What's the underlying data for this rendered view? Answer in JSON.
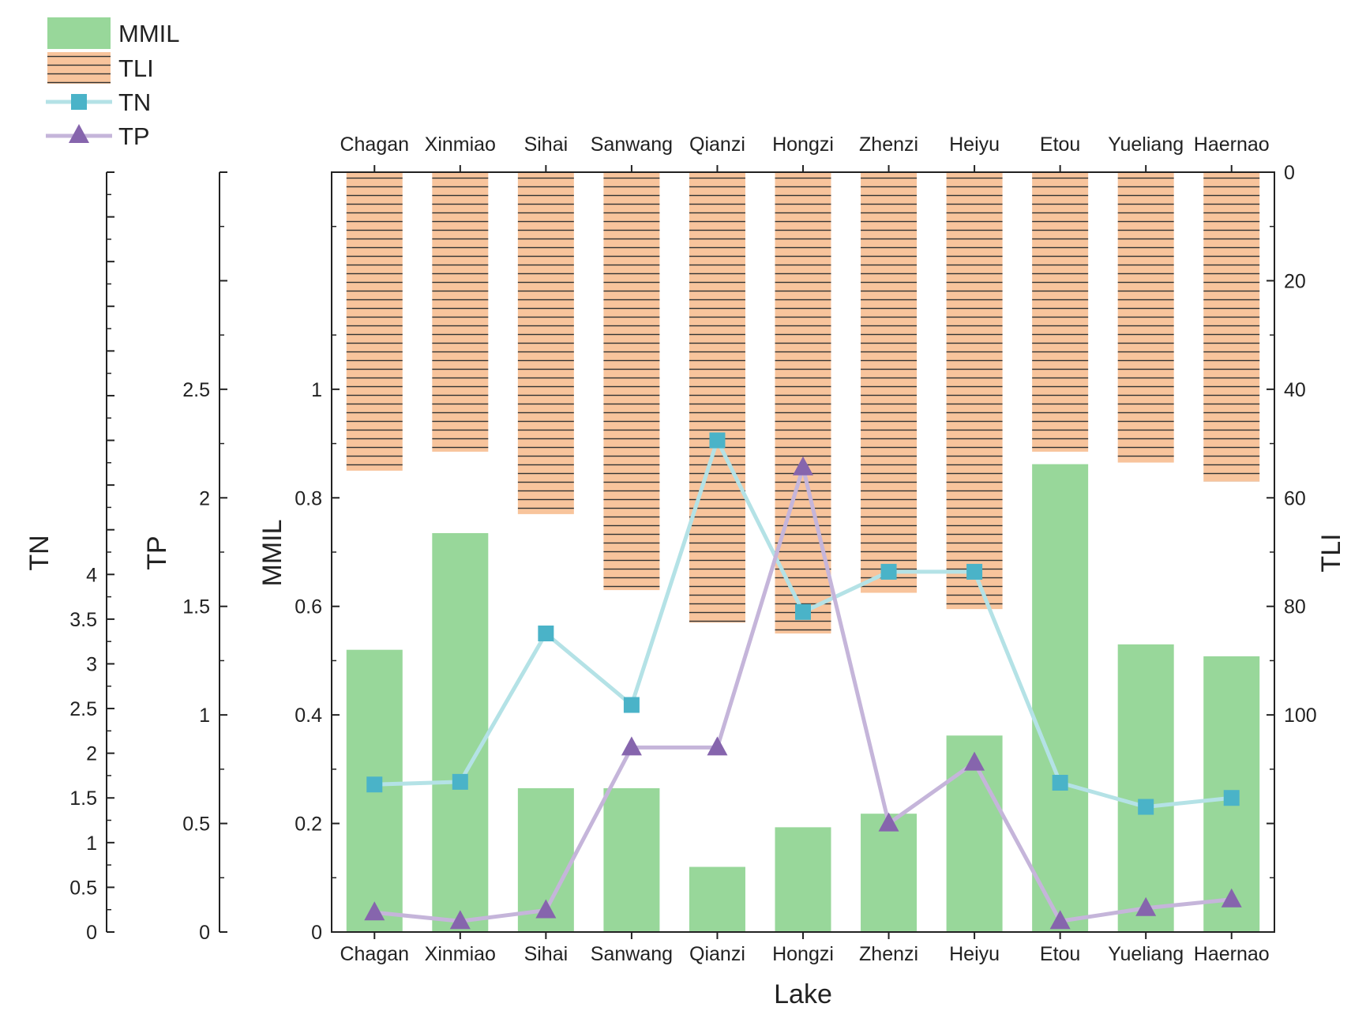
{
  "chart_data": {
    "type": "bar",
    "xlabel": "Lake",
    "categories": [
      "Chagan",
      "Xinmiao",
      "Sihai",
      "Sanwang",
      "Qianzi",
      "Hongzi",
      "Zhenzi",
      "Heiyu",
      "Etou",
      "Yueliang",
      "Haernao"
    ],
    "series": [
      {
        "name": "MMIL",
        "kind": "bar",
        "axis": "MMIL",
        "values": [
          0.52,
          0.735,
          0.265,
          0.265,
          0.12,
          0.193,
          0.218,
          0.362,
          0.862,
          0.53,
          0.508
        ]
      },
      {
        "name": "TLI",
        "kind": "bar",
        "axis": "TLI",
        "values": [
          55,
          51.5,
          63,
          77,
          83,
          85,
          77.5,
          80.5,
          51.5,
          53.5,
          57
        ]
      },
      {
        "name": "TN",
        "kind": "line",
        "axis": "TN",
        "values": [
          1.65,
          1.68,
          3.34,
          2.54,
          5.5,
          3.58,
          4.03,
          4.03,
          1.67,
          1.4,
          1.5
        ]
      },
      {
        "name": "TP",
        "kind": "line",
        "axis": "TP",
        "values": [
          0.09,
          0.05,
          0.1,
          0.85,
          0.85,
          2.14,
          0.5,
          0.78,
          0.05,
          0.11,
          0.15
        ]
      }
    ],
    "axes": {
      "MMIL": {
        "label": "MMIL",
        "range": [
          0,
          1.4
        ],
        "ticks": [
          0,
          0.2,
          0.4,
          0.6,
          0.8,
          1
        ],
        "tick_labels": [
          "0",
          "0.2",
          "0.4",
          "0.6",
          "0.8",
          "1"
        ]
      },
      "TLI": {
        "label": "TLI",
        "range": [
          0,
          140
        ],
        "inverted": true,
        "ticks": [
          0,
          20,
          40,
          60,
          80,
          100
        ],
        "tick_labels": [
          "0",
          "20",
          "40",
          "60",
          "80",
          "100"
        ]
      },
      "TP": {
        "label": "TP",
        "range": [
          0,
          3.5
        ],
        "ticks": [
          0,
          0.5,
          1,
          1.5,
          2,
          2.5
        ],
        "tick_labels": [
          "0",
          "0.5",
          "1",
          "1.5",
          "2",
          "2.5"
        ]
      },
      "TN": {
        "label": "TN",
        "range": [
          0,
          8.5
        ],
        "ticks": [
          0,
          0.5,
          1,
          1.5,
          2,
          2.5,
          3,
          3.5,
          4
        ],
        "tick_labels": [
          "0",
          "0.5",
          "1",
          "1.5",
          "2",
          "2.5",
          "3",
          "3.5",
          "4"
        ]
      }
    },
    "legend": {
      "position": "top-left",
      "entries": [
        "MMIL",
        "TLI",
        "TN",
        "TP"
      ]
    },
    "colors": {
      "MMIL": "#98d79a",
      "TLI": "#f8c49c",
      "TLI_hatch": "#333333",
      "TN_line": "#b4e2e6",
      "TN_marker": "#4ab3c8",
      "TP_line": "#c5b5da",
      "TP_marker": "#8665ad"
    }
  }
}
